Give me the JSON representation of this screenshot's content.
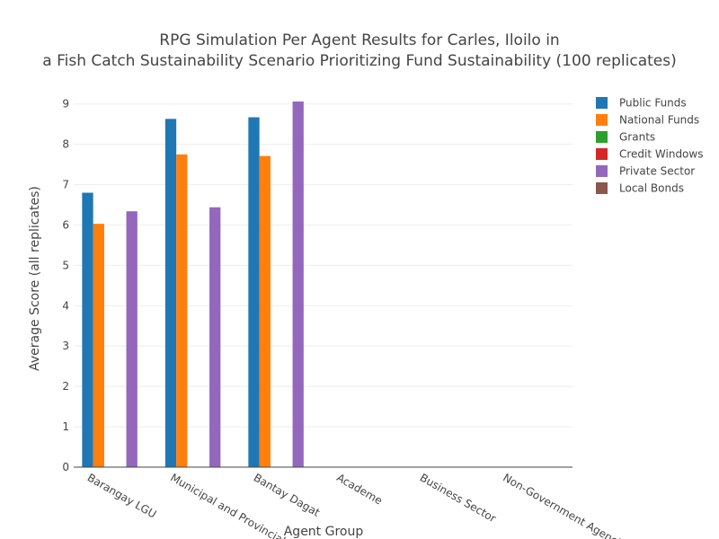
{
  "chart_data": {
    "type": "bar",
    "title_lines": [
      "RPG Simulation Per Agent Results for Carles, Iloilo in",
      "a Fish Catch Sustainability Scenario Prioritizing Fund Sustainability (100 replicates)"
    ],
    "xlabel": "Agent Group",
    "ylabel": "Average Score (all replicates)",
    "ylim": [
      0,
      9.35
    ],
    "yticks": [
      0,
      1,
      2,
      3,
      4,
      5,
      6,
      7,
      8,
      9
    ],
    "grid": true,
    "legend_position": "top-right",
    "categories": [
      "Barangay LGU",
      "Municipal and Provincial LGU",
      "Bantay Dagat",
      "Academe",
      "Business Sector",
      "Non-Government Agencies"
    ],
    "series": [
      {
        "name": "Public Funds",
        "color": "#1f77b4",
        "values": [
          6.8,
          8.63,
          8.67,
          null,
          null,
          null
        ]
      },
      {
        "name": "National Funds",
        "color": "#ff7f0e",
        "values": [
          6.03,
          7.75,
          7.71,
          null,
          null,
          null
        ]
      },
      {
        "name": "Grants",
        "color": "#2ca02c",
        "values": [
          null,
          null,
          null,
          null,
          null,
          null
        ]
      },
      {
        "name": "Credit Windows",
        "color": "#d62728",
        "values": [
          null,
          null,
          null,
          null,
          null,
          null
        ]
      },
      {
        "name": "Private Sector",
        "color": "#9467bd",
        "values": [
          6.34,
          6.44,
          9.06,
          null,
          null,
          null
        ]
      },
      {
        "name": "Local Bonds",
        "color": "#8c564b",
        "values": [
          null,
          null,
          null,
          null,
          null,
          null
        ]
      }
    ]
  }
}
